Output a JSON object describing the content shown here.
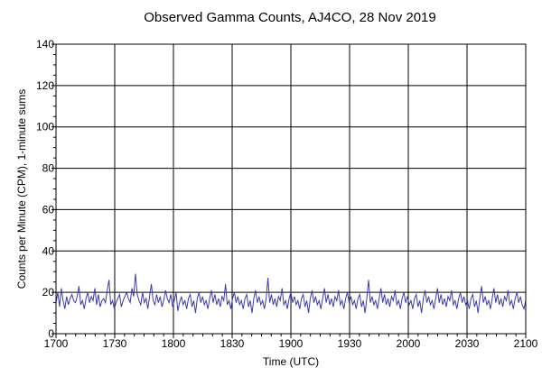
{
  "chart_data": {
    "type": "line",
    "title": "Observed Gamma Counts, AJ4CO, 28 Nov 2019",
    "xlabel": "Time (UTC)",
    "ylabel": "Counts per Minute (CPM), 1-minute sums",
    "x_tick_labels": [
      "1700",
      "1730",
      "1800",
      "1830",
      "1900",
      "1930",
      "2000",
      "2030",
      "2100"
    ],
    "y_tick_labels": [
      "0",
      "20",
      "40",
      "60",
      "80",
      "100",
      "120",
      "140"
    ],
    "x_start_utc": "17:00",
    "x_end_utc": "21:00",
    "ylim": [
      0,
      140
    ],
    "grid": true,
    "line_color": "#3b3bb0",
    "series": [
      {
        "values": [
          15,
          20,
          13,
          22,
          16,
          12,
          18,
          14,
          17,
          19,
          16,
          15,
          18,
          23,
          14,
          16,
          12,
          17,
          20,
          15,
          18,
          16,
          22,
          14,
          19,
          13,
          16,
          17,
          15,
          21,
          26,
          14,
          16,
          12,
          15,
          17,
          19,
          13,
          16,
          18,
          20,
          17,
          15,
          22,
          18,
          29,
          19,
          16,
          14,
          20,
          15,
          17,
          12,
          18,
          24,
          16,
          14,
          19,
          15,
          18,
          13,
          16,
          21,
          17,
          15,
          19,
          13,
          16,
          20,
          11,
          15,
          18,
          14,
          16,
          12,
          17,
          19,
          13,
          16,
          10,
          17,
          20,
          15,
          18,
          14,
          16,
          12,
          17,
          21,
          15,
          19,
          14,
          17,
          13,
          18,
          16,
          24,
          14,
          16,
          12,
          17,
          20,
          15,
          18,
          14,
          16,
          12,
          17,
          19,
          13,
          16,
          10,
          17,
          21,
          15,
          18,
          14,
          16,
          12,
          17,
          27,
          15,
          19,
          14,
          17,
          13,
          18,
          16,
          22,
          14,
          16,
          12,
          17,
          20,
          15,
          18,
          14,
          16,
          12,
          17,
          19,
          13,
          16,
          10,
          17,
          21,
          15,
          18,
          14,
          16,
          12,
          17,
          22,
          15,
          19,
          14,
          17,
          13,
          18,
          16,
          21,
          14,
          16,
          12,
          17,
          20,
          15,
          18,
          14,
          16,
          12,
          17,
          19,
          13,
          16,
          10,
          17,
          26,
          15,
          18,
          14,
          16,
          12,
          17,
          22,
          15,
          19,
          14,
          17,
          13,
          18,
          16,
          21,
          14,
          16,
          12,
          17,
          20,
          15,
          18,
          14,
          16,
          12,
          17,
          19,
          13,
          16,
          10,
          17,
          21,
          15,
          18,
          14,
          16,
          12,
          17,
          22,
          15,
          19,
          14,
          17,
          13,
          18,
          16,
          21,
          14,
          16,
          12,
          17,
          20,
          15,
          18,
          14,
          16,
          12,
          17,
          19,
          13,
          16,
          10,
          17,
          23,
          15,
          18,
          14,
          16,
          12,
          17,
          22,
          15,
          19,
          14,
          17,
          13,
          18,
          16,
          21,
          14,
          16,
          12,
          17,
          20,
          15,
          18,
          14,
          12,
          16
        ]
      }
    ]
  }
}
